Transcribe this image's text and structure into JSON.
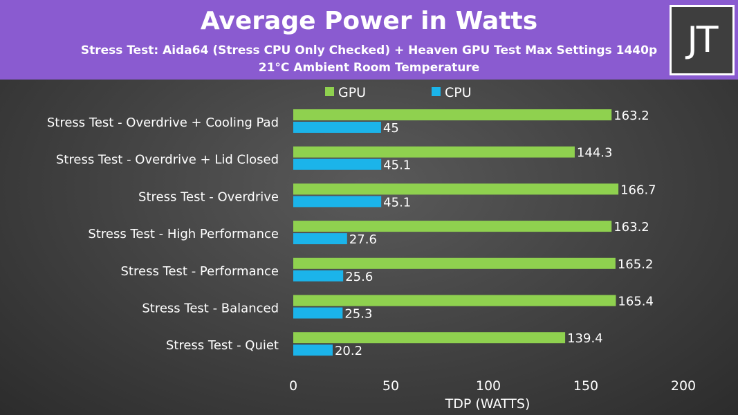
{
  "header": {
    "title": "Average Power in Watts",
    "subtitle_line1": "Stress Test: Aida64 (Stress CPU Only Checked) + Heaven GPU Test Max Settings 1440p",
    "subtitle_line2": "21°C Ambient Room Temperature",
    "logo_text": "JT",
    "background_color": "#8a5bd0"
  },
  "chart_data": {
    "type": "bar",
    "orientation": "horizontal",
    "title": "Average Power in Watts",
    "subtitle": "Stress Test: Aida64 (Stress CPU Only Checked) + Heaven GPU Test Max Settings 1440p",
    "xlabel": "TDP (WATTS)",
    "ylabel": "",
    "xlim": [
      0,
      200
    ],
    "xticks": [
      0,
      50,
      100,
      150,
      200
    ],
    "grid": false,
    "legend_position": "top",
    "categories": [
      "Stress Test - Overdrive + Cooling Pad",
      "Stress Test - Overdrive + Lid Closed",
      "Stress Test - Overdrive",
      "Stress Test - High Performance",
      "Stress Test - Performance",
      "Stress Test - Balanced",
      "Stress Test - Quiet"
    ],
    "series": [
      {
        "name": "GPU",
        "color": "#8fd14f",
        "values": [
          163.2,
          144.3,
          166.7,
          163.2,
          165.2,
          165.4,
          139.4
        ]
      },
      {
        "name": "CPU",
        "color": "#1bb4ea",
        "values": [
          45,
          45.1,
          45.1,
          27.6,
          25.6,
          25.3,
          20.2
        ]
      }
    ]
  }
}
